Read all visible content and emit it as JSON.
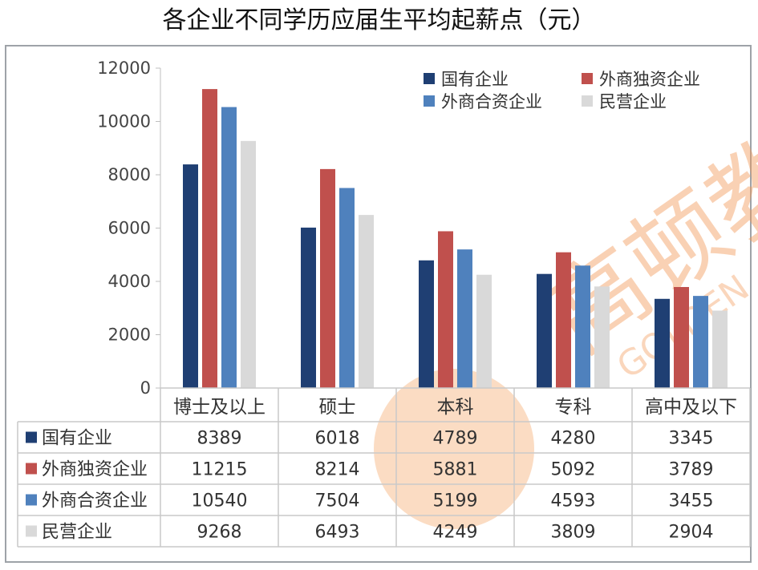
{
  "title": "各企业不同学历应届生平均起薪点（元）",
  "watermark": "高顿教育 GOLDEN",
  "chart_data": {
    "type": "bar",
    "title": "各企业不同学历应届生平均起薪点（元）",
    "categories": [
      "博士及以上",
      "硕士",
      "本科",
      "专科",
      "高中及以下"
    ],
    "series": [
      {
        "name": "国有企业",
        "color": "#1f3f73",
        "values": [
          8389,
          6018,
          4789,
          4280,
          3345
        ]
      },
      {
        "name": "外商独资企业",
        "color": "#c0504d",
        "values": [
          11215,
          8214,
          5881,
          5092,
          3789
        ]
      },
      {
        "name": "外商合资企业",
        "color": "#4f81bd",
        "values": [
          10540,
          7504,
          5199,
          4593,
          3455
        ]
      },
      {
        "name": "民营企业",
        "color": "#d9d9d9",
        "values": [
          9268,
          6493,
          4249,
          3809,
          2904
        ]
      }
    ],
    "yticks": [
      0,
      2000,
      4000,
      6000,
      8000,
      10000,
      12000
    ],
    "ylim": [
      0,
      12000
    ],
    "legend": "top-right",
    "grid": false,
    "data_table": true
  }
}
